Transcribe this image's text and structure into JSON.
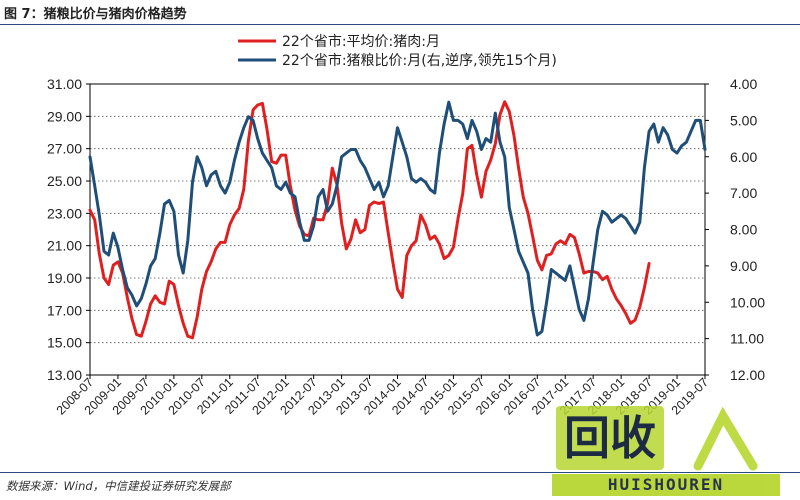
{
  "figure": {
    "title": "图 7：猪粮比价与猪肉价格趋势",
    "source": "数据来源：Wind，中信建投证券研究发展部",
    "watermark_cn": "回收",
    "watermark_en": "HUISHOUREN"
  },
  "chart_data": {
    "type": "line",
    "title": "",
    "x_tick_labels": [
      "2008-07",
      "2009-01",
      "2009-07",
      "2010-01",
      "2010-07",
      "2011-01",
      "2011-07",
      "2012-01",
      "2012-07",
      "2013-01",
      "2013-07",
      "2014-01",
      "2014-07",
      "2015-01",
      "2015-07",
      "2016-01",
      "2016-07",
      "2017-01",
      "2017-07",
      "2018-01",
      "2018-07",
      "2019-01",
      "2019-07"
    ],
    "x_range": [
      0,
      132
    ],
    "left_axis": {
      "range": [
        13,
        31
      ],
      "ticks": [
        "13.00",
        "15.00",
        "17.00",
        "19.00",
        "21.00",
        "23.00",
        "25.00",
        "27.00",
        "29.00",
        "31.00"
      ]
    },
    "right_axis": {
      "range": [
        4,
        12
      ],
      "reversed": true,
      "ticks": [
        "4.00",
        "5.00",
        "6.00",
        "7.00",
        "8.00",
        "9.00",
        "10.00",
        "11.00",
        "12.00"
      ]
    },
    "legend_position": "top-center",
    "series": [
      {
        "name": "22个省市:平均价:猪肉:月",
        "axis": "left",
        "color": "#e02020",
        "x": [
          0,
          1,
          2,
          3,
          4,
          5,
          6,
          7,
          8,
          9,
          10,
          11,
          12,
          13,
          14,
          15,
          16,
          17,
          18,
          19,
          20,
          21,
          22,
          23,
          24,
          25,
          26,
          27,
          28,
          29,
          30,
          31,
          32,
          33,
          34,
          35,
          36,
          37,
          38,
          39,
          40,
          41,
          42,
          43,
          44,
          45,
          46,
          47,
          48,
          49,
          50,
          51,
          52,
          53,
          54,
          55,
          56,
          57,
          58,
          59,
          60,
          61,
          62,
          63,
          64,
          65,
          66,
          67,
          68,
          69,
          70,
          71,
          72,
          73,
          74,
          75,
          76,
          77,
          78,
          79,
          80,
          81,
          82,
          83,
          84,
          85,
          86,
          87,
          88,
          89,
          90,
          91,
          92,
          93,
          94,
          95,
          96,
          97,
          98,
          99,
          100,
          101,
          102,
          103,
          104,
          105,
          106,
          107,
          108,
          109,
          110,
          111,
          112,
          113,
          114,
          115,
          116,
          117,
          118,
          119,
          120
        ],
        "values": [
          23.2,
          22.6,
          20.5,
          19.0,
          18.6,
          19.8,
          20.0,
          19.3,
          17.8,
          16.5,
          15.5,
          15.4,
          16.3,
          17.4,
          17.9,
          17.5,
          17.4,
          18.8,
          18.6,
          17.3,
          16.2,
          15.4,
          15.3,
          16.6,
          18.3,
          19.4,
          20.0,
          20.8,
          21.2,
          21.2,
          22.3,
          22.9,
          23.3,
          24.5,
          27.5,
          29.4,
          29.7,
          29.8,
          28.2,
          26.2,
          26.1,
          26.6,
          26.6,
          24.7,
          23.2,
          22.2,
          21.7,
          21.6,
          22.7,
          22.6,
          22.6,
          23.6,
          25.8,
          24.8,
          22.4,
          20.8,
          21.4,
          22.6,
          21.8,
          22.0,
          23.5,
          23.7,
          23.6,
          23.7,
          21.8,
          20.0,
          18.3,
          17.8,
          20.4,
          21.0,
          21.3,
          22.9,
          22.3,
          21.4,
          21.6,
          21.1,
          20.2,
          20.4,
          20.9,
          22.7,
          24.2,
          27.0,
          27.2,
          25.4,
          24.0,
          25.6,
          26.3,
          27.3,
          29.1,
          29.9,
          29.3,
          27.8,
          25.8,
          24.0,
          23.0,
          21.6,
          20.1,
          19.5,
          20.4,
          20.5,
          21.1,
          21.3,
          21.1,
          21.7,
          21.5,
          20.5,
          19.3,
          19.4,
          19.4,
          19.3,
          18.9,
          19.1,
          18.3,
          17.7,
          17.3,
          16.8,
          16.2,
          16.4,
          17.2,
          18.4,
          19.9
        ]
      },
      {
        "name": "22个省市:猪粮比价:月(右,逆序,领先15个月)",
        "axis": "right",
        "color": "#1f4e79",
        "x": [
          0,
          1,
          2,
          3,
          4,
          5,
          6,
          7,
          8,
          9,
          10,
          11,
          12,
          13,
          14,
          15,
          16,
          17,
          18,
          19,
          20,
          21,
          22,
          23,
          24,
          25,
          26,
          27,
          28,
          29,
          30,
          31,
          32,
          33,
          34,
          35,
          36,
          37,
          38,
          39,
          40,
          41,
          42,
          43,
          44,
          45,
          46,
          47,
          48,
          49,
          50,
          51,
          52,
          53,
          54,
          55,
          56,
          57,
          58,
          59,
          60,
          61,
          62,
          63,
          64,
          65,
          66,
          67,
          68,
          69,
          70,
          71,
          72,
          73,
          74,
          75,
          76,
          77,
          78,
          79,
          80,
          81,
          82,
          83,
          84,
          85,
          86,
          87,
          88,
          89,
          90,
          91,
          92,
          93,
          94,
          95,
          96,
          97,
          98,
          99,
          100,
          101,
          102,
          103,
          104,
          105,
          106,
          107,
          108,
          109,
          110,
          111,
          112,
          113,
          114,
          115,
          116,
          117,
          118,
          119,
          120,
          121,
          122,
          123,
          124,
          125,
          126,
          127,
          128,
          129,
          130,
          131,
          132
        ],
        "values": [
          6.0,
          6.8,
          7.6,
          8.6,
          8.7,
          8.1,
          8.5,
          9.1,
          9.6,
          9.8,
          10.1,
          9.9,
          9.5,
          9.0,
          8.8,
          8.1,
          7.3,
          7.2,
          7.5,
          8.7,
          9.2,
          8.3,
          6.7,
          6.0,
          6.3,
          6.8,
          6.5,
          6.4,
          6.8,
          7.0,
          6.7,
          6.1,
          5.6,
          5.2,
          4.9,
          5.0,
          5.5,
          5.9,
          6.1,
          6.3,
          6.8,
          6.9,
          6.7,
          7.0,
          7.1,
          7.8,
          8.3,
          8.3,
          7.9,
          7.1,
          6.9,
          7.5,
          7.3,
          6.8,
          6.0,
          5.9,
          5.8,
          5.8,
          6.1,
          6.3,
          6.6,
          6.9,
          6.7,
          7.1,
          6.8,
          6.0,
          5.2,
          5.6,
          6.0,
          6.6,
          6.7,
          6.6,
          6.7,
          6.9,
          7.0,
          5.9,
          5.1,
          4.5,
          5.0,
          5.0,
          5.1,
          5.5,
          5.0,
          5.3,
          5.8,
          5.5,
          5.6,
          4.8,
          5.6,
          6.0,
          7.4,
          8.0,
          8.6,
          8.9,
          9.2,
          10.2,
          10.9,
          10.8,
          10.0,
          9.1,
          9.2,
          9.3,
          9.4,
          9.0,
          9.6,
          10.2,
          10.5,
          9.9,
          8.9,
          8.0,
          7.5,
          7.6,
          7.8,
          7.7,
          7.6,
          7.7,
          7.9,
          8.1,
          7.8,
          6.3,
          5.3,
          5.1,
          5.6,
          5.2,
          5.4,
          5.8,
          5.9,
          5.7,
          5.6,
          5.3,
          5.0,
          5.0,
          5.8
        ]
      }
    ]
  }
}
